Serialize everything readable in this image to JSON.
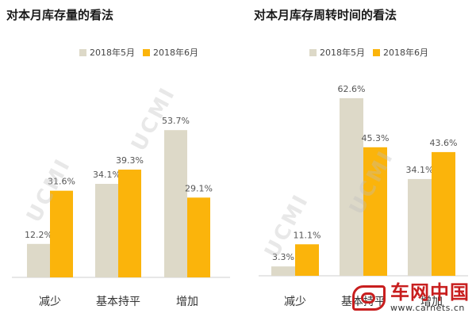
{
  "colors": {
    "may": "#ddd9c8",
    "june": "#fbb40b",
    "axis": "#cfcfcf",
    "logo": "#c81e1e"
  },
  "watermark": "UCMI",
  "chart_data": [
    {
      "type": "bar",
      "title": "对本月库存量的看法",
      "categories": [
        "减少",
        "基本持平",
        "增加"
      ],
      "series": [
        {
          "name": "2018年5月",
          "values": [
            12.2,
            34.1,
            53.7
          ],
          "labels": [
            "12.2%",
            "34.1%",
            "53.7%"
          ]
        },
        {
          "name": "2018年6月",
          "values": [
            31.6,
            39.3,
            29.1
          ],
          "labels": [
            "31.6%",
            "39.3%",
            "29.1%"
          ]
        }
      ],
      "ylim": [
        0,
        60
      ],
      "grid": false,
      "legend": "top"
    },
    {
      "type": "bar",
      "title": "对本月库存周转时间的看法",
      "categories": [
        "减少",
        "基本持平",
        "增加"
      ],
      "series": [
        {
          "name": "2018年5月",
          "values": [
            3.3,
            62.6,
            34.1
          ],
          "labels": [
            "3.3%",
            "62.6%",
            "34.1%"
          ]
        },
        {
          "name": "2018年6月",
          "values": [
            11.1,
            45.3,
            43.6
          ],
          "labels": [
            "11.1%",
            "45.3%",
            "43.6%"
          ]
        }
      ],
      "ylim": [
        0,
        70
      ],
      "grid": false,
      "legend": "top"
    }
  ],
  "logo": {
    "name": "车网中国",
    "url": "www.carnets.cn"
  }
}
